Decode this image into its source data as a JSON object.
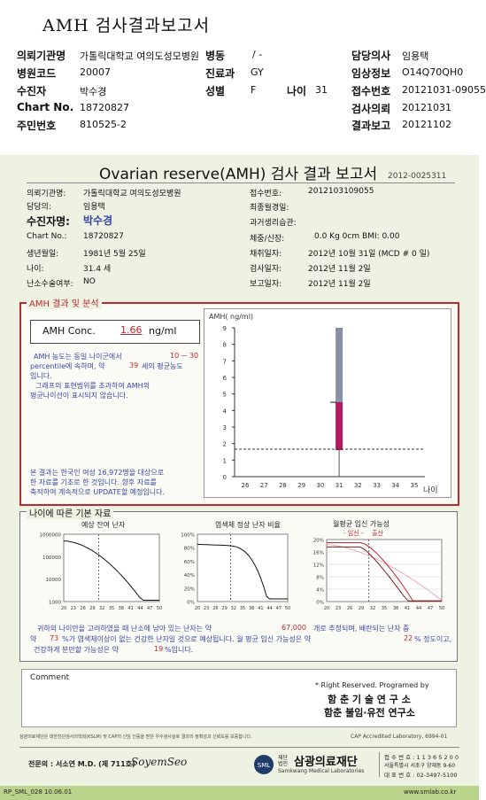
{
  "header": {
    "title": "AMH 검사결과보고서",
    "rows": [
      {
        "l1": "의뢰기관명",
        "v1": "가톨릭대학교 여의도성모병원",
        "l2": "병동",
        "v2": "/ -",
        "l3": "담당의사",
        "v3": "임용택"
      },
      {
        "l1": "병원코드",
        "v1": "20007",
        "l2": "진료과",
        "v2": "GY",
        "l3": "임상정보",
        "v3": "O14Q70QH0"
      },
      {
        "l1": "수진자",
        "v1": "박수경",
        "l2": "성별",
        "v2": "F",
        "l2b": "나이",
        "v2b": "31",
        "l3": "접수번호",
        "v3": "20121031-09055"
      },
      {
        "l1": "Chart No.",
        "v1": "18720827",
        "l3": "검사의뢰",
        "v3": "20121031"
      },
      {
        "l1": "주민번호",
        "v1": "810525-2",
        "l3": "결과보고",
        "v3": "20121102"
      }
    ]
  },
  "report": {
    "title": "Ovarian reserve(AMH) 검사 결과 보고서",
    "number": "2012-0025311",
    "left_fields": [
      {
        "label": "의뢰기관명:",
        "value": "가톨릭대학교 여의도성모병원"
      },
      {
        "label": "담당의:",
        "value": "임용택"
      },
      {
        "label": "수진자명:",
        "value": "박수경"
      },
      {
        "label": "Chart No.:",
        "value": "18720827"
      },
      {
        "label": "생년월일:",
        "value": "1981년 5월 25일"
      },
      {
        "label": "나이:",
        "value": "31.4 세"
      },
      {
        "label": "난소수술여부:",
        "value": "NO"
      }
    ],
    "right_fields": [
      {
        "label": "접수번호:",
        "value": "2012103109055"
      },
      {
        "label": "최종월경일:",
        "value": ""
      },
      {
        "label": "과거생리습관:",
        "value": ""
      },
      {
        "label": "체중/신장:",
        "value": "0.0 Kg        0cm    BMI:   0.00"
      },
      {
        "label": "채취일자:",
        "value": "2012년 10월 31일  (MCD #  0 일)"
      },
      {
        "label": "검사일자:",
        "value": "2012년 11월 2일"
      },
      {
        "label": "보고일자:",
        "value": "2012년 11월 2일"
      }
    ],
    "amh": {
      "section_title": "AMH 결과 및 분석",
      "conc_label": "AMH Conc.",
      "conc_value": "1.66",
      "conc_unit": "ng/ml",
      "p1a": "AMH 농도는 동일 나이군에서",
      "p1b": "10 ~  30",
      "p2a": "percentile에 속하며,  약",
      "p2b": "39",
      "p2c": "세의 평균농도",
      "p3": "입니다.",
      "p4": "그래프의 표현범위를 초과하여 AMH의",
      "p5": "평균나이선이 표시되지 않습니다.",
      "note1": "본 결과는 한국인 여성 16,972명을 대상으로",
      "note2": "한 자료를 기초로 한 것입니다. 향후 자료를",
      "note3": "축적하여 계속적으로 UPDATE할 예정입니다."
    },
    "base": {
      "section_title": "나이에 따른 기본 자료",
      "p1_title": "예상 잔여 난자",
      "p2_title": "염색체 정상 난자 비율",
      "p3_title": "월평균 임신 가능성",
      "p3_legend_a": "- 임신 -",
      "p3_legend_b": "출산",
      "summary1a": "귀하의 나이만을 고려하였을 때 난소에 남아 있는 난자는 약",
      "summary1b": "67,000",
      "summary1c": "개로 추정되며, 배란되는 난자 중",
      "summary2a": "약",
      "summary2b": "73",
      "summary2c": "%가 염색체이상이 없는 건강한 난자일 것으로 예상됩니다. 월 평균 임신 가능성은 약",
      "summary2d": "22",
      "summary2e": "% 정도이고,",
      "summary3a": "건강하게 분만할 가능성은 약",
      "summary3b": "19",
      "summary3c": "%입니다."
    },
    "comment_label": "Comment",
    "rights1": "* Right Reserved. Programed by",
    "rights2": "함 춘  기 술  연 구 소",
    "rights3": "함춘 불임·유전 연구소",
    "cert_text": "삼광의료재단은 대한진단검사의학회(KSLM) 및 CAP의 신임 인증을 받은 우수검사실로 결과의 정확성과 신뢰도를 보증합니다.",
    "cap_text": "CAP  Accredited  Laboratory,  6994-01",
    "doctor_label": "전문의 : 서소연 M.D. (제 711호)",
    "signature": "SoyemSeo",
    "org_small": "재단법인",
    "org_name": "삼광의료재단",
    "org_en": "Samkwang Medical Laboratories",
    "contact1": "접 수 번 호 : 1 1 3 6 5 2 0 0",
    "contact2": "서울특별시 서초구 양재동 9-60",
    "contact3": "대 표 번 호 : 02-3497-5100",
    "form_code": "RP_SML_028  10.06.01",
    "website": "www.smlab.co.kr"
  },
  "chart_data": [
    {
      "type": "bar",
      "ylabel": "AMH( ng/ml)",
      "xlabel": "나이",
      "x": [
        26,
        27,
        28,
        29,
        30,
        31,
        32,
        33,
        34,
        35
      ],
      "ylim": [
        0,
        9
      ],
      "yticks": [
        0,
        1,
        2,
        3,
        4,
        5,
        6,
        7,
        8,
        9
      ],
      "range_bar": {
        "x": 31,
        "low": 4.4,
        "high": 9.0,
        "color": "#8a8fa8"
      },
      "patient_bar": {
        "x": 31,
        "low": 1.6,
        "high": 4.5,
        "color": "#b01a5e"
      },
      "patient_line": 1.66
    },
    {
      "type": "line",
      "title": "예상 잔여 난자",
      "xticks": [
        20,
        23,
        26,
        29,
        32,
        35,
        38,
        41,
        44,
        47,
        50
      ],
      "yticks": [
        "1000000",
        "100000",
        "10000",
        "1000"
      ],
      "marker_x": 31
    },
    {
      "type": "line",
      "title": "염색체 정상 난자 비율",
      "xticks": [
        20,
        23,
        26,
        29,
        32,
        35,
        38,
        41,
        44,
        47,
        50
      ],
      "yticks": [
        "100%",
        "80%",
        "60%",
        "40%",
        "20%",
        "0%"
      ],
      "marker_x": 31
    },
    {
      "type": "line",
      "title": "월평균 임신 가능성",
      "xticks": [
        20,
        23,
        26,
        29,
        32,
        35,
        38,
        41,
        44,
        47,
        50
      ],
      "yticks": [
        "20%",
        "16%",
        "12%",
        "8%",
        "4%",
        "0%"
      ],
      "marker_x": 31,
      "series": [
        {
          "name": "임신",
          "color": "#c4262e"
        },
        {
          "name": "출산",
          "color": "#c4262e"
        }
      ]
    }
  ],
  "colors": {
    "accent_red": "#c4262e",
    "blue_text": "#3a45a6",
    "patient_bar": "#b01a5e",
    "range_bar": "#8a8fa8"
  }
}
